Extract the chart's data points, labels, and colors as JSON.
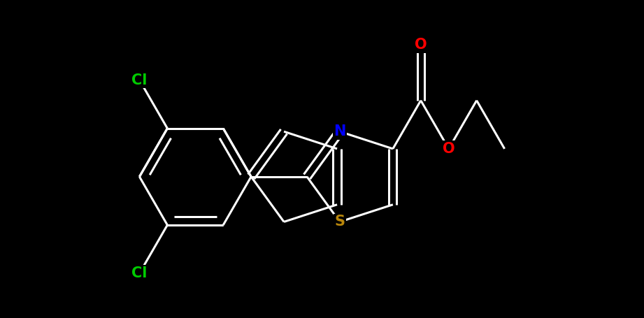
{
  "background_color": "#000000",
  "atom_colors": {
    "N": "#0000ff",
    "S": "#b8860b",
    "O": "#ff0000",
    "Cl": "#00cc00"
  },
  "bond_color": "#ffffff",
  "bond_width": 2.2,
  "font_size": 15
}
